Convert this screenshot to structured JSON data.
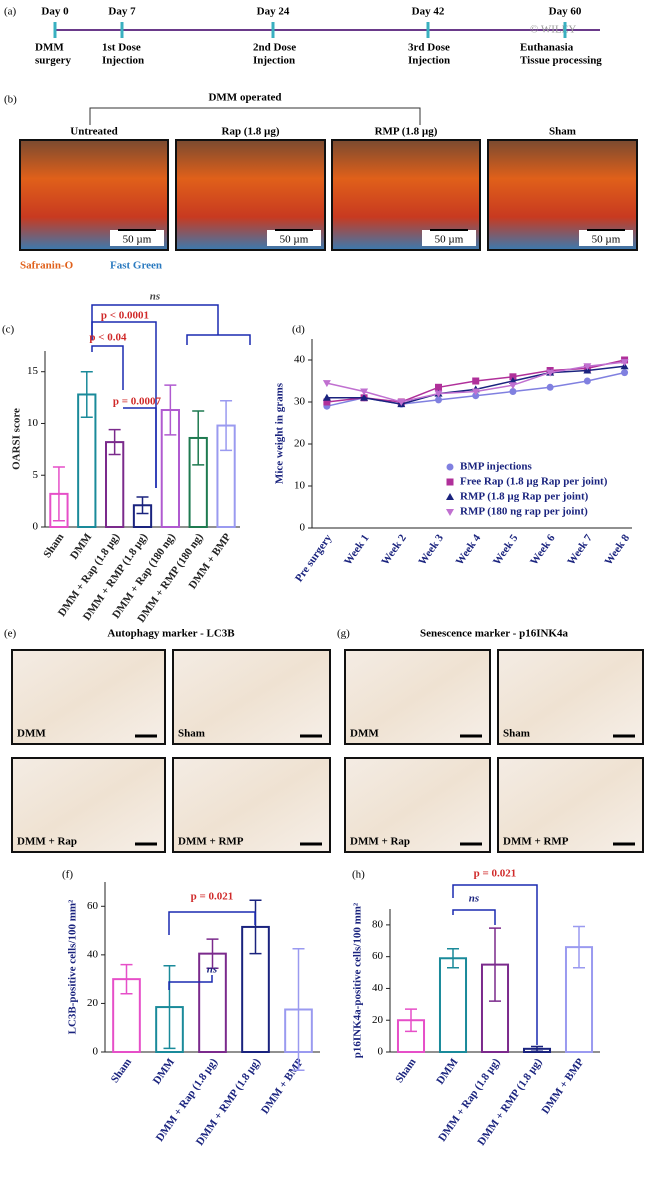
{
  "timeline": {
    "label": "(a)",
    "watermark": "© WILEY",
    "events": [
      {
        "day": "Day 0",
        "label": [
          "DMM",
          "surgery"
        ]
      },
      {
        "day": "Day 7",
        "label": [
          "1st Dose",
          "Injection"
        ]
      },
      {
        "day": "Day 24",
        "label": [
          "2nd Dose",
          "Injection"
        ]
      },
      {
        "day": "Day 42",
        "label": [
          "3rd Dose",
          "Injection"
        ]
      },
      {
        "day": "Day 60",
        "label": [
          "Euthanasia",
          "Tissue processing"
        ]
      }
    ]
  },
  "panel_b": {
    "label": "(b)",
    "title": "DMM operated",
    "images": [
      "Untreated",
      "Rap (1.8 µg)",
      "RMP (1.8 µg)",
      "Sham"
    ],
    "scale_bar": "50 µm",
    "stains": [
      "Safranin-O",
      "Fast Green"
    ]
  },
  "panel_e": {
    "label": "(e)",
    "title": "Autophagy marker - LC3B",
    "images": [
      "DMM",
      "Sham",
      "DMM + Rap",
      "DMM + RMP"
    ]
  },
  "panel_g": {
    "label": "(g)",
    "title": "Senescence marker - p16INK4a",
    "images": [
      "DMM",
      "Sham",
      "DMM + Rap",
      "DMM +  RMP"
    ]
  },
  "chart_data": [
    {
      "type": "bar",
      "label": "(c)",
      "ylabel": "OARSI score",
      "categories": [
        "Sham",
        "DMM",
        "DMM + Rap (1.8 µg)",
        "DMM + RMP (1.8 µg)",
        "DMM + Rap (180 ng)",
        "DMM + RMP (180 ng)",
        "DMM + BMP"
      ],
      "values": [
        3.2,
        12.8,
        8.2,
        2.1,
        11.3,
        8.6,
        9.8
      ],
      "errors": [
        2.6,
        2.2,
        1.2,
        0.8,
        2.4,
        2.6,
        2.4
      ],
      "colors": [
        "#e64fc8",
        "#1a8a9a",
        "#7b2a8c",
        "#1a237e",
        "#b05ad0",
        "#1e7a50",
        "#9a9af0"
      ],
      "ylim": [
        0,
        17
      ],
      "yticks": [
        0,
        5,
        10,
        15
      ],
      "annotations": [
        "ns",
        "p < 0.0001",
        "p < 0.04",
        "p = 0.0007"
      ]
    },
    {
      "type": "line",
      "label": "(d)",
      "ylabel": "Mice weight in grams",
      "categories": [
        "Pre surgery",
        "Week 1",
        "Week 2",
        "Week 3",
        "Week 4",
        "Week 5",
        "Week 6",
        "Week 7",
        "Week 8"
      ],
      "ylim": [
        0,
        45
      ],
      "yticks": [
        0,
        10,
        20,
        30,
        40
      ],
      "series": [
        {
          "name": "BMP injections",
          "color": "#8080e0",
          "marker": "circle",
          "values": [
            29,
            31,
            29.5,
            30.5,
            31.5,
            32.5,
            33.5,
            35,
            37
          ]
        },
        {
          "name": "Free Rap (1.8 µg Rap per joint)",
          "color": "#b0309a",
          "marker": "square",
          "values": [
            30,
            31,
            30,
            33.5,
            35,
            36,
            37.5,
            38,
            40
          ]
        },
        {
          "name": "RMP (1.8 µg Rap per joint)",
          "color": "#1a237e",
          "marker": "triangle",
          "values": [
            31,
            31,
            29.5,
            32,
            33,
            35,
            37,
            37.5,
            38.5
          ]
        },
        {
          "name": "RMP (180 ng rap per joint)",
          "color": "#c070d0",
          "marker": "triangle-down",
          "values": [
            34.5,
            32.5,
            30,
            32,
            32.5,
            34,
            37,
            38.5,
            39.5
          ]
        }
      ]
    },
    {
      "type": "bar",
      "label": "(f)",
      "ylabel": "LC3B-positive cells/100 mm²",
      "categories": [
        "Sham",
        "DMM",
        "DMM + Rap (1.8 µg)",
        "DMM + RMP (1.8 µg)",
        "DMM + BMP"
      ],
      "values": [
        30,
        18.5,
        40.5,
        51.5,
        17.5
      ],
      "errors": [
        6,
        17,
        6,
        11,
        25
      ],
      "colors": [
        "#e64fc8",
        "#1a8a9a",
        "#7b2a8c",
        "#1a237e",
        "#9a9af0"
      ],
      "ylim": [
        0,
        70
      ],
      "yticks": [
        0,
        20,
        40,
        60
      ],
      "annotations": [
        "p = 0.021",
        "ns"
      ]
    },
    {
      "type": "bar",
      "label": "(h)",
      "ylabel": "p16INK4a-positive cells/100 mm²",
      "categories": [
        "Sham",
        "DMM",
        "DMM + Rap (1.8 µg)",
        "DMM + RMP (1.8 µg)",
        "DMM + BMP"
      ],
      "values": [
        20,
        59,
        55,
        2,
        66
      ],
      "errors": [
        7,
        6,
        23,
        1.5,
        13
      ],
      "colors": [
        "#e64fc8",
        "#1a8a9a",
        "#7b2a8c",
        "#1a237e",
        "#9a9af0"
      ],
      "ylim": [
        0,
        90
      ],
      "yticks": [
        0,
        20,
        40,
        60,
        80
      ],
      "annotations": [
        "p = 0.021",
        "ns"
      ]
    }
  ]
}
